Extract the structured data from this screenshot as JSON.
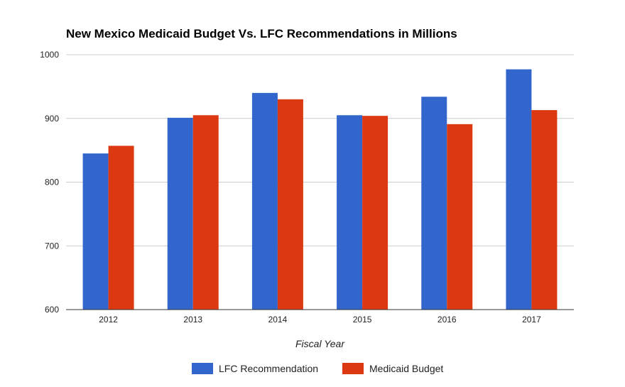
{
  "chart_data": {
    "type": "bar",
    "title": "New Mexico Medicaid Budget Vs. LFC Recommendations in Millions",
    "xlabel": "Fiscal Year",
    "ylabel": "",
    "categories": [
      "2012",
      "2013",
      "2014",
      "2015",
      "2016",
      "2017"
    ],
    "series": [
      {
        "name": "LFC Recommendation",
        "color": "#3366cc",
        "values": [
          845,
          901,
          940,
          905,
          934,
          977
        ]
      },
      {
        "name": "Medicaid Budget",
        "color": "#dc3912",
        "values": [
          857,
          905,
          930,
          904,
          891,
          913
        ]
      }
    ],
    "ylim": [
      600,
      1000
    ],
    "yticks": [
      600,
      700,
      800,
      900,
      1000
    ],
    "grid": true,
    "legend_position": "bottom"
  }
}
